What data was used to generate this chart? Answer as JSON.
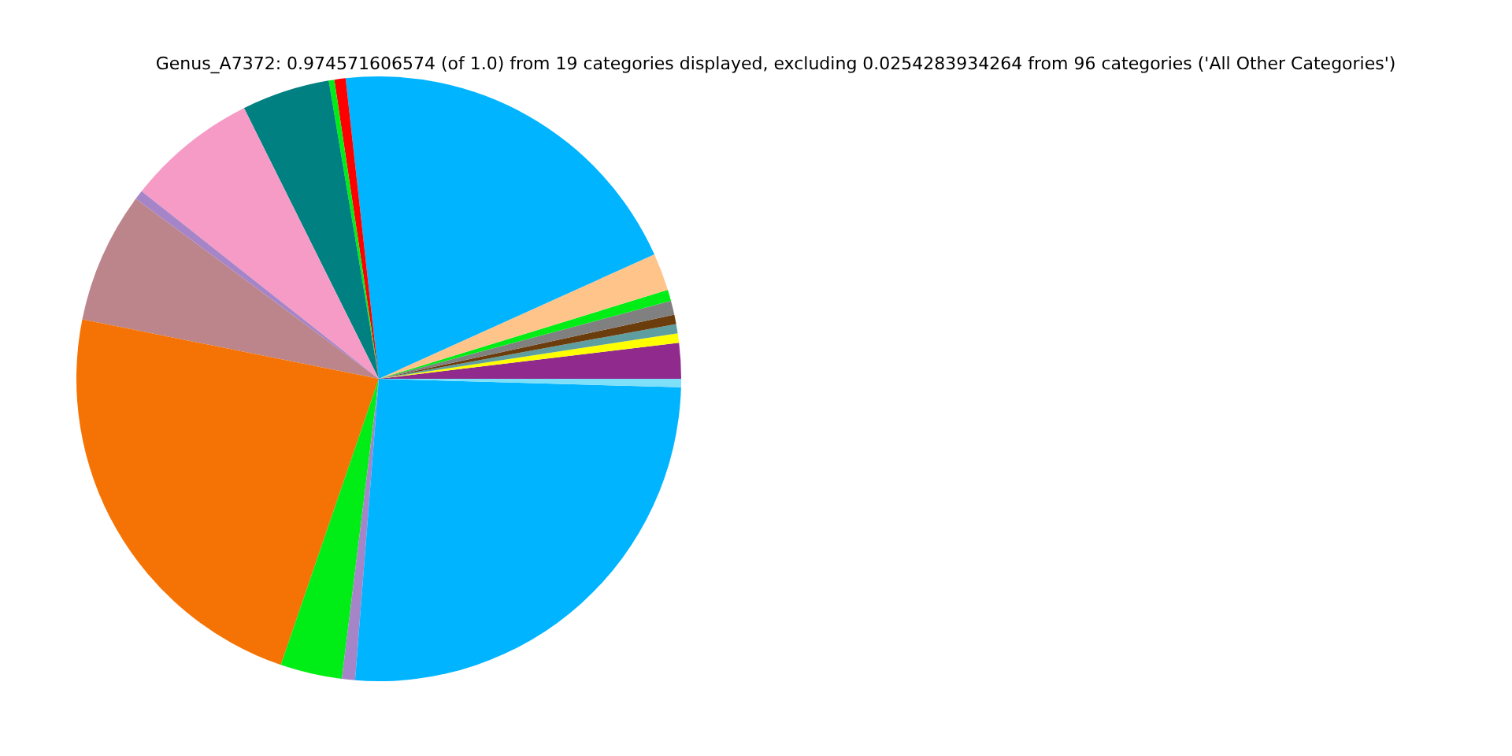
{
  "chart_data": {
    "type": "pie",
    "title": "Genus_A7372: 0.974571606574 (of 1.0) from 19 categories displayed, excluding 0.0254283934264 from 96 categories ('All Other Categories')",
    "categories": [
      null,
      null,
      null,
      null,
      null,
      null,
      null,
      null,
      null,
      null,
      null,
      null,
      null,
      null,
      null,
      null,
      null,
      null,
      null
    ],
    "values": [
      1.9,
      0.5,
      0.5,
      0.5,
      0.75,
      0.6,
      2.0,
      20.0,
      0.6,
      0.3,
      4.7,
      7.0,
      0.5,
      7.0,
      22.9,
      3.3,
      0.7,
      25.8,
      0.45
    ],
    "colors": [
      "#912a8d",
      "#ffff00",
      "#5f9ea0",
      "#6b3d0c",
      "#808080",
      "#00ee16",
      "#ffc48a",
      "#00b4ff",
      "#ff0000",
      "#00ee16",
      "#008080",
      "#f59bc6",
      "#a585c8",
      "#bc848b",
      "#f47304",
      "#00ee16",
      "#a585c8",
      "#00b4ff",
      "#7ee0f8"
    ]
  }
}
